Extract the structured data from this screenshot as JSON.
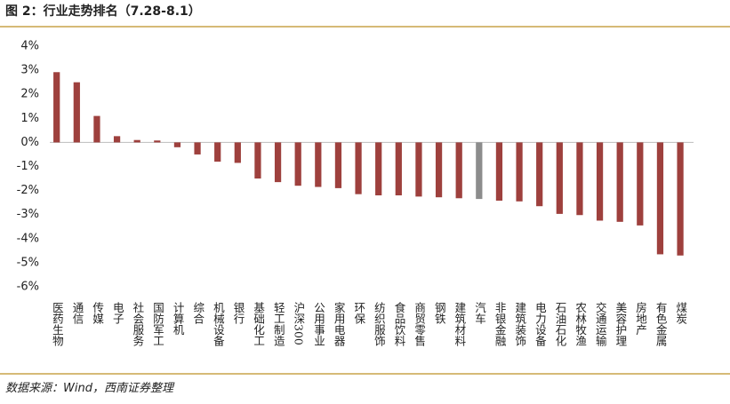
{
  "chart_data": {
    "type": "bar",
    "title": "图 2：行业走势排名（7.28-8.1）",
    "source": "数据来源：Wind，西南证券整理",
    "categories": [
      "医药生物",
      "通信",
      "传媒",
      "电子",
      "社会服务",
      "国防军工",
      "计算机",
      "综合",
      "机械设备",
      "银行",
      "基础化工",
      "轻工制造",
      "沪深300",
      "公用事业",
      "家用电器",
      "环保",
      "纺织服饰",
      "食品饮料",
      "商贸零售",
      "钢铁",
      "建筑材料",
      "汽车",
      "非银金融",
      "建筑装饰",
      "电力设备",
      "石油石化",
      "农林牧渔",
      "交通运输",
      "美容护理",
      "房地产",
      "有色金属",
      "煤炭"
    ],
    "values": [
      2.92,
      2.5,
      1.1,
      0.26,
      0.1,
      0.08,
      -0.2,
      -0.5,
      -0.8,
      -0.85,
      -1.5,
      -1.65,
      -1.8,
      -1.85,
      -1.9,
      -2.15,
      -2.2,
      -2.2,
      -2.25,
      -2.28,
      -2.32,
      -2.35,
      -2.42,
      -2.45,
      -2.65,
      -2.97,
      -3.02,
      -3.25,
      -3.3,
      -3.45,
      -4.65,
      -4.7
    ],
    "colors": [
      "#9e403d",
      "#9e403d",
      "#9e403d",
      "#9e403d",
      "#9e403d",
      "#9e403d",
      "#9e403d",
      "#9e403d",
      "#9e403d",
      "#9e403d",
      "#9e403d",
      "#9e403d",
      "#9e403d",
      "#9e403d",
      "#9e403d",
      "#9e403d",
      "#9e403d",
      "#9e403d",
      "#9e403d",
      "#9e403d",
      "#9e403d",
      "#8c8c8c",
      "#9e403d",
      "#9e403d",
      "#9e403d",
      "#9e403d",
      "#9e403d",
      "#9e403d",
      "#9e403d",
      "#9e403d",
      "#9e403d",
      "#9e403d"
    ],
    "ylim": [
      -6,
      4
    ],
    "yticks": [
      {
        "value": -6,
        "label": "-6%"
      },
      {
        "value": -5,
        "label": "-5%"
      },
      {
        "value": -4,
        "label": "-4%"
      },
      {
        "value": -3,
        "label": "-3%"
      },
      {
        "value": -2,
        "label": "-2%"
      },
      {
        "value": -1,
        "label": "-1%"
      },
      {
        "value": 0,
        "label": "0%"
      },
      {
        "value": 1,
        "label": "1%"
      },
      {
        "value": 2,
        "label": "2%"
      },
      {
        "value": 3,
        "label": "3%"
      },
      {
        "value": 4,
        "label": "4%"
      }
    ],
    "grid": false
  }
}
